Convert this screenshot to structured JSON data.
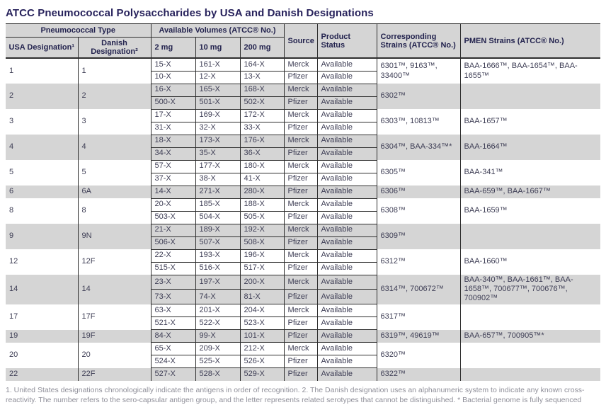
{
  "title": "ATCC Pneumococcal Polysaccharides by USA and Danish Designations",
  "header": {
    "pneumococcal_type": "Pneumococcal Type",
    "usa_designation": "USA Designation¹",
    "danish_designation": "Danish Designation²",
    "available_volumes": "Available Volumes (ATCC® No.)",
    "vol_2mg": "2 mg",
    "vol_10mg": "10 mg",
    "vol_200mg": "200 mg",
    "source": "Source",
    "product_status": "Product Status",
    "corresponding_strains": "Corresponding Strains (ATCC® No.)",
    "pmen_strains": "PMEN Strains (ATCC® No.)"
  },
  "groups": [
    {
      "usa": "1",
      "danish": "1",
      "rows": [
        {
          "v2": "15-X",
          "v10": "161-X",
          "v200": "164-X",
          "source": "Merck",
          "status": "Available"
        },
        {
          "v2": "10-X",
          "v10": "12-X",
          "v200": "13-X",
          "source": "Pfizer",
          "status": "Available"
        }
      ],
      "strains": "6301™, 9163™, 33400™",
      "pmen": "BAA-1666™, BAA-1654™, BAA-1655™"
    },
    {
      "usa": "2",
      "danish": "2",
      "rows": [
        {
          "v2": "16-X",
          "v10": "165-X",
          "v200": "168-X",
          "source": "Merck",
          "status": "Available"
        },
        {
          "v2": "500-X",
          "v10": "501-X",
          "v200": "502-X",
          "source": "Pfizer",
          "status": "Available"
        }
      ],
      "strains": "6302™",
      "pmen": ""
    },
    {
      "usa": "3",
      "danish": "3",
      "rows": [
        {
          "v2": "17-X",
          "v10": "169-X",
          "v200": "172-X",
          "source": "Merck",
          "status": "Available"
        },
        {
          "v2": "31-X",
          "v10": "32-X",
          "v200": "33-X",
          "source": "Pfizer",
          "status": "Available"
        }
      ],
      "strains": "6303™, 10813™",
      "pmen": "BAA-1657™"
    },
    {
      "usa": "4",
      "danish": "4",
      "rows": [
        {
          "v2": "18-X",
          "v10": "173-X",
          "v200": "176-X",
          "source": "Merck",
          "status": "Available"
        },
        {
          "v2": "34-X",
          "v10": "35-X",
          "v200": "36-X",
          "source": "Pfizer",
          "status": "Available"
        }
      ],
      "strains": "6304™, BAA-334™*",
      "pmen": "BAA-1664™"
    },
    {
      "usa": "5",
      "danish": "5",
      "rows": [
        {
          "v2": "57-X",
          "v10": "177-X",
          "v200": "180-X",
          "source": "Merck",
          "status": "Available"
        },
        {
          "v2": "37-X",
          "v10": "38-X",
          "v200": "41-X",
          "source": "Pfizer",
          "status": "Available"
        }
      ],
      "strains": "6305™",
      "pmen": "BAA-341™"
    },
    {
      "usa": "6",
      "danish": "6A",
      "rows": [
        {
          "v2": "14-X",
          "v10": "271-X",
          "v200": "280-X",
          "source": "Pfizer",
          "status": "Available"
        }
      ],
      "strains": "6306™",
      "pmen": "BAA-659™, BAA-1667™"
    },
    {
      "usa": "8",
      "danish": "8",
      "rows": [
        {
          "v2": "20-X",
          "v10": "185-X",
          "v200": "188-X",
          "source": "Merck",
          "status": "Available"
        },
        {
          "v2": "503-X",
          "v10": "504-X",
          "v200": "505-X",
          "source": "Pfizer",
          "status": "Available"
        }
      ],
      "strains": "6308™",
      "pmen": "BAA-1659™"
    },
    {
      "usa": "9",
      "danish": "9N",
      "rows": [
        {
          "v2": "21-X",
          "v10": "189-X",
          "v200": "192-X",
          "source": "Merck",
          "status": "Available"
        },
        {
          "v2": "506-X",
          "v10": "507-X",
          "v200": "508-X",
          "source": "Pfizer",
          "status": "Available"
        }
      ],
      "strains": "6309™",
      "pmen": ""
    },
    {
      "usa": "12",
      "danish": "12F",
      "rows": [
        {
          "v2": "22-X",
          "v10": "193-X",
          "v200": "196-X",
          "source": "Merck",
          "status": "Available"
        },
        {
          "v2": "515-X",
          "v10": "516-X",
          "v200": "517-X",
          "source": "Pfizer",
          "status": "Available"
        }
      ],
      "strains": "6312™",
      "pmen": "BAA-1660™"
    },
    {
      "usa": "14",
      "danish": "14",
      "rows": [
        {
          "v2": "23-X",
          "v10": "197-X",
          "v200": "200-X",
          "source": "Merck",
          "status": "Available"
        },
        {
          "v2": "73-X",
          "v10": "74-X",
          "v200": "81-X",
          "source": "Pfizer",
          "status": "Available"
        }
      ],
      "strains": "6314™, 700672™",
      "pmen": "BAA-340™, BAA-1661™, BAA-1658™, 700677™, 700676™, 700902™"
    },
    {
      "usa": "17",
      "danish": "17F",
      "rows": [
        {
          "v2": "63-X",
          "v10": "201-X",
          "v200": "204-X",
          "source": "Merck",
          "status": "Available"
        },
        {
          "v2": "521-X",
          "v10": "522-X",
          "v200": "523-X",
          "source": "Pfizer",
          "status": "Available"
        }
      ],
      "strains": "6317™",
      "pmen": ""
    },
    {
      "usa": "19",
      "danish": "19F",
      "rows": [
        {
          "v2": "84-X",
          "v10": "99-X",
          "v200": "101-X",
          "source": "Pfizer",
          "status": "Available"
        }
      ],
      "strains": "6319™, 49619™",
      "pmen": "BAA-657™, 700905™*"
    },
    {
      "usa": "20",
      "danish": "20",
      "rows": [
        {
          "v2": "65-X",
          "v10": "209-X",
          "v200": "212-X",
          "source": "Merck",
          "status": "Available"
        },
        {
          "v2": "524-X",
          "v10": "525-X",
          "v200": "526-X",
          "source": "Pfizer",
          "status": "Available"
        }
      ],
      "strains": "6320™",
      "pmen": ""
    },
    {
      "usa": "22",
      "danish": "22F",
      "rows": [
        {
          "v2": "527-X",
          "v10": "528-X",
          "v200": "529-X",
          "source": "Pfizer",
          "status": "Available"
        }
      ],
      "strains": "6322™",
      "pmen": ""
    }
  ],
  "footnote": "1. United States designations chronologically indicate the antigens in order of recognition. 2. The Danish designation uses an alphanumeric system to indicate any known cross-reactivity. The number refers to the sero-capsular antigen group, and the letter represents related serotypes that cannot be distinguished. * Bacterial genome is fully sequenced",
  "colors": {
    "title": "#28235c",
    "header_bg": "#d5d5d5",
    "stripe_bg": "#d5d5d5",
    "border": "#2e2e2e",
    "body_text": "#3e3e55",
    "footnote_text": "#8f8f99"
  }
}
